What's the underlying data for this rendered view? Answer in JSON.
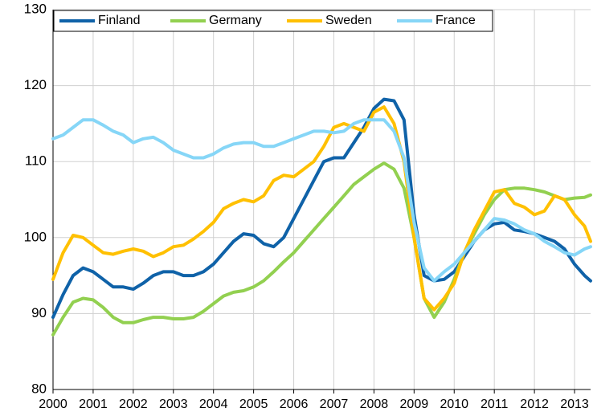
{
  "chart_data": {
    "type": "line",
    "x": [
      2000,
      2000.25,
      2000.5,
      2000.75,
      2001,
      2001.25,
      2001.5,
      2001.75,
      2002,
      2002.25,
      2002.5,
      2002.75,
      2003,
      2003.25,
      2003.5,
      2003.75,
      2004,
      2004.25,
      2004.5,
      2004.75,
      2005,
      2005.25,
      2005.5,
      2005.75,
      2006,
      2006.25,
      2006.5,
      2006.75,
      2007,
      2007.25,
      2007.5,
      2007.75,
      2008,
      2008.25,
      2008.5,
      2008.75,
      2009,
      2009.25,
      2009.5,
      2009.75,
      2010,
      2010.25,
      2010.5,
      2010.75,
      2011,
      2011.25,
      2011.5,
      2011.75,
      2012,
      2012.25,
      2012.5,
      2012.75,
      2013,
      2013.25,
      2013.4
    ],
    "series": [
      {
        "name": "Finland",
        "color": "#0f62a8",
        "values": [
          89.5,
          92.5,
          95,
          96,
          95.5,
          94.5,
          93.5,
          93.5,
          93.2,
          94,
          95,
          95.5,
          95.5,
          95,
          95,
          95.5,
          96.5,
          98,
          99.5,
          100.5,
          100.3,
          99.2,
          98.8,
          100,
          102.5,
          105,
          107.5,
          110,
          110.5,
          110.5,
          112.5,
          114.5,
          117,
          118.2,
          118,
          115.5,
          103,
          95,
          94.3,
          94.5,
          95.5,
          97.5,
          99.5,
          101,
          101.8,
          102,
          101,
          100.8,
          100.5,
          100,
          99.5,
          98.5,
          96.5,
          95,
          94.3
        ]
      },
      {
        "name": "Germany",
        "color": "#92d050",
        "values": [
          87.2,
          89.5,
          91.5,
          92,
          91.8,
          90.8,
          89.5,
          88.8,
          88.8,
          89.2,
          89.5,
          89.5,
          89.3,
          89.3,
          89.5,
          90.3,
          91.3,
          92.3,
          92.8,
          93,
          93.5,
          94.3,
          95.5,
          96.8,
          98,
          99.5,
          101,
          102.5,
          104,
          105.5,
          107,
          108,
          109,
          109.8,
          109,
          106.5,
          100,
          92,
          89.5,
          91.5,
          94.5,
          98,
          100.5,
          103,
          105,
          106.3,
          106.5,
          106.5,
          106.3,
          106,
          105.5,
          105,
          105.2,
          105.3,
          105.6
        ]
      },
      {
        "name": "Sweden",
        "color": "#ffc000",
        "values": [
          94.5,
          98,
          100.3,
          100,
          99,
          98,
          97.8,
          98.2,
          98.5,
          98.2,
          97.5,
          98,
          98.8,
          99,
          99.8,
          100.8,
          102,
          103.8,
          104.5,
          105,
          104.7,
          105.5,
          107.5,
          108.2,
          108,
          109,
          110,
          112,
          114.5,
          115,
          114.5,
          114,
          116.5,
          117.2,
          115,
          110,
          100,
          92,
          90.5,
          92,
          94,
          98,
          101,
          103.5,
          106,
          106.3,
          104.5,
          104,
          103,
          103.5,
          105.5,
          105,
          103,
          101.5,
          99.5
        ]
      },
      {
        "name": "France",
        "color": "#86d6f7",
        "values": [
          113,
          113.5,
          114.5,
          115.5,
          115.5,
          114.8,
          114,
          113.5,
          112.5,
          113,
          113.2,
          112.5,
          111.5,
          111,
          110.5,
          110.5,
          111,
          111.8,
          112.3,
          112.5,
          112.5,
          112,
          112,
          112.5,
          113,
          113.5,
          114,
          114,
          113.8,
          114,
          115,
          115.5,
          115.5,
          115.5,
          114,
          110.5,
          102,
          96,
          94.3,
          95.5,
          96.5,
          98,
          99.5,
          101,
          102.5,
          102.3,
          101.8,
          101,
          100.5,
          99.5,
          98.8,
          98,
          97.7,
          98.5,
          98.8
        ]
      }
    ],
    "xlim": [
      2000,
      2013.4
    ],
    "xticks": [
      2000,
      2001,
      2002,
      2003,
      2004,
      2005,
      2006,
      2007,
      2008,
      2009,
      2010,
      2011,
      2012,
      2013
    ],
    "ylim": [
      80,
      130
    ],
    "yticks": [
      80,
      90,
      100,
      110,
      120,
      130
    ],
    "grid": true,
    "legend": "top"
  }
}
